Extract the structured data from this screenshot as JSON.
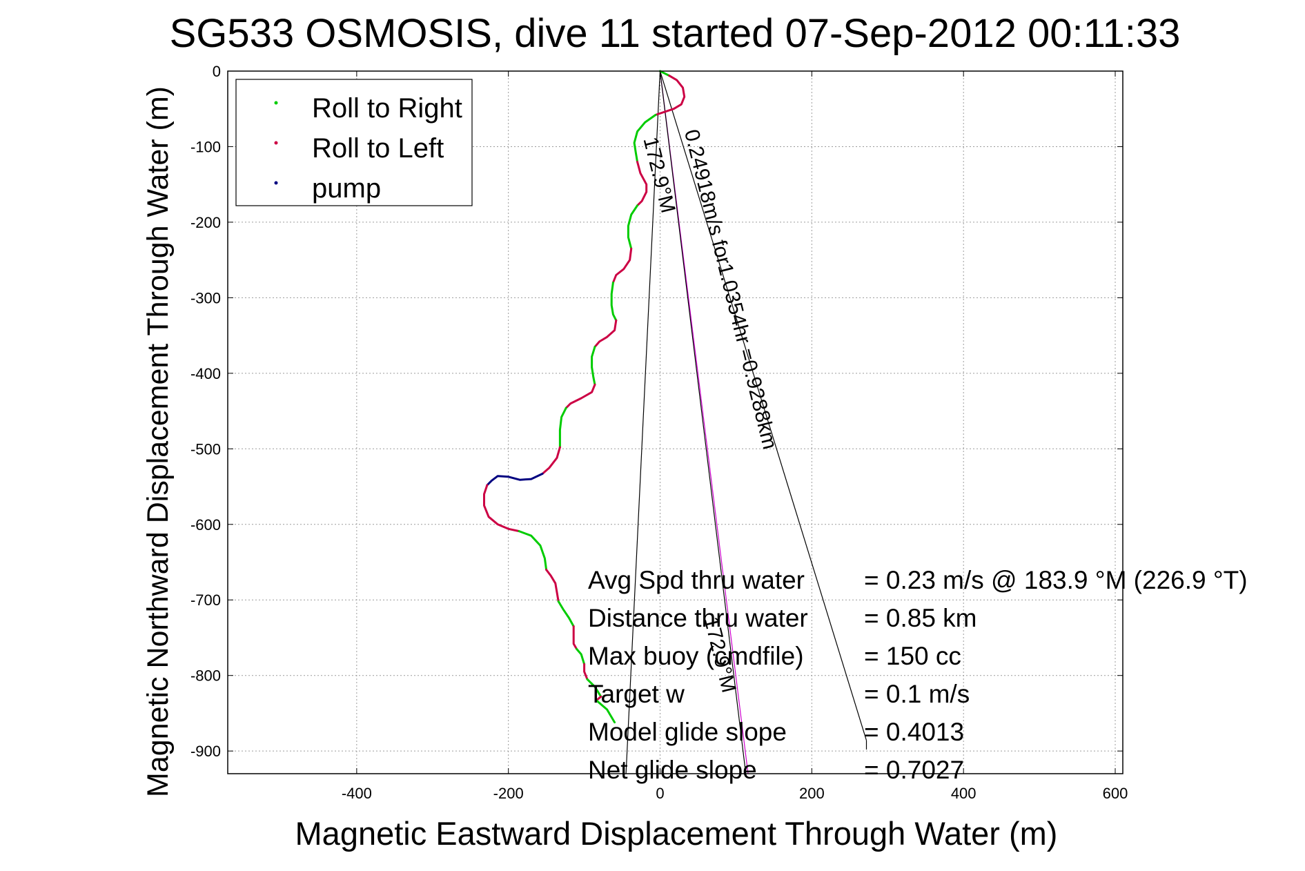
{
  "chart_data": {
    "type": "line",
    "title": "SG533 OSMOSIS, dive 11 started 07-Sep-2012 00:11:33",
    "xlabel": "Magnetic Eastward Displacement Through Water (m)",
    "ylabel": "Magnetic Northward Displacement Through Water (m)",
    "xlim": [
      -570,
      610
    ],
    "ylim": [
      -930,
      0
    ],
    "xticks": [
      -400,
      -200,
      0,
      200,
      400,
      600
    ],
    "yticks": [
      0,
      -100,
      -200,
      -300,
      -400,
      -500,
      -600,
      -700,
      -800,
      -900
    ],
    "grid": true,
    "legend_position": "top-left",
    "legend": [
      {
        "label": "Roll to Right",
        "color": "#00cc00"
      },
      {
        "label": "Roll to Left",
        "color": "#cc0044"
      },
      {
        "label": "pump",
        "color": "#000080"
      }
    ],
    "track_segments": [
      {
        "kind": "right",
        "points": [
          [
            0,
            0
          ],
          [
            6,
            -3
          ],
          [
            12,
            -6
          ]
        ]
      },
      {
        "kind": "left",
        "points": [
          [
            12,
            -6
          ],
          [
            22,
            -12
          ],
          [
            30,
            -22
          ],
          [
            32,
            -34
          ],
          [
            28,
            -44
          ],
          [
            18,
            -50
          ],
          [
            6,
            -54
          ],
          [
            -6,
            -58
          ]
        ]
      },
      {
        "kind": "right",
        "points": [
          [
            -6,
            -58
          ],
          [
            -20,
            -68
          ],
          [
            -30,
            -80
          ],
          [
            -34,
            -95
          ],
          [
            -32,
            -108
          ],
          [
            -30,
            -120
          ]
        ]
      },
      {
        "kind": "left",
        "points": [
          [
            -30,
            -120
          ],
          [
            -26,
            -135
          ],
          [
            -18,
            -150
          ],
          [
            -18,
            -160
          ],
          [
            -24,
            -172
          ],
          [
            -30,
            -178
          ]
        ]
      },
      {
        "kind": "right",
        "points": [
          [
            -30,
            -178
          ],
          [
            -38,
            -190
          ],
          [
            -42,
            -205
          ],
          [
            -42,
            -220
          ],
          [
            -38,
            -235
          ]
        ]
      },
      {
        "kind": "left",
        "points": [
          [
            -38,
            -235
          ],
          [
            -40,
            -250
          ],
          [
            -48,
            -262
          ],
          [
            -58,
            -270
          ],
          [
            -62,
            -280
          ]
        ]
      },
      {
        "kind": "right",
        "points": [
          [
            -62,
            -280
          ],
          [
            -64,
            -295
          ],
          [
            -64,
            -310
          ],
          [
            -62,
            -322
          ],
          [
            -58,
            -330
          ]
        ]
      },
      {
        "kind": "left",
        "points": [
          [
            -58,
            -330
          ],
          [
            -60,
            -343
          ],
          [
            -70,
            -352
          ],
          [
            -80,
            -358
          ],
          [
            -86,
            -365
          ]
        ]
      },
      {
        "kind": "right",
        "points": [
          [
            -86,
            -365
          ],
          [
            -90,
            -378
          ],
          [
            -90,
            -392
          ],
          [
            -88,
            -405
          ],
          [
            -86,
            -415
          ]
        ]
      },
      {
        "kind": "left",
        "points": [
          [
            -86,
            -415
          ],
          [
            -90,
            -425
          ],
          [
            -104,
            -433
          ],
          [
            -118,
            -440
          ],
          [
            -124,
            -446
          ]
        ]
      },
      {
        "kind": "right",
        "points": [
          [
            -124,
            -446
          ],
          [
            -130,
            -458
          ],
          [
            -132,
            -475
          ],
          [
            -132,
            -490
          ],
          [
            -132,
            -498
          ]
        ]
      },
      {
        "kind": "left",
        "points": [
          [
            -132,
            -498
          ],
          [
            -136,
            -512
          ],
          [
            -146,
            -525
          ],
          [
            -155,
            -533
          ]
        ]
      },
      {
        "kind": "pump",
        "points": [
          [
            -155,
            -533
          ],
          [
            -170,
            -540
          ],
          [
            -185,
            -541
          ],
          [
            -200,
            -537
          ],
          [
            -214,
            -536
          ],
          [
            -222,
            -542
          ],
          [
            -228,
            -548
          ]
        ]
      },
      {
        "kind": "left",
        "points": [
          [
            -228,
            -548
          ],
          [
            -232,
            -560
          ],
          [
            -232,
            -575
          ],
          [
            -226,
            -590
          ],
          [
            -214,
            -600
          ],
          [
            -200,
            -606
          ],
          [
            -186,
            -609
          ]
        ]
      },
      {
        "kind": "right",
        "points": [
          [
            -186,
            -609
          ],
          [
            -170,
            -615
          ],
          [
            -158,
            -628
          ],
          [
            -152,
            -645
          ],
          [
            -150,
            -660
          ]
        ]
      },
      {
        "kind": "left",
        "points": [
          [
            -150,
            -660
          ],
          [
            -144,
            -668
          ],
          [
            -138,
            -678
          ],
          [
            -136,
            -690
          ],
          [
            -134,
            -702
          ]
        ]
      },
      {
        "kind": "right",
        "points": [
          [
            -134,
            -702
          ],
          [
            -128,
            -712
          ],
          [
            -120,
            -724
          ],
          [
            -114,
            -735
          ]
        ]
      },
      {
        "kind": "left",
        "points": [
          [
            -114,
            -735
          ],
          [
            -114,
            -748
          ],
          [
            -114,
            -758
          ],
          [
            -110,
            -765
          ]
        ]
      },
      {
        "kind": "right",
        "points": [
          [
            -110,
            -765
          ],
          [
            -104,
            -772
          ],
          [
            -100,
            -785
          ]
        ]
      },
      {
        "kind": "left",
        "points": [
          [
            -100,
            -785
          ],
          [
            -100,
            -795
          ],
          [
            -96,
            -805
          ]
        ]
      },
      {
        "kind": "right",
        "points": [
          [
            -96,
            -805
          ],
          [
            -86,
            -815
          ],
          [
            -78,
            -828
          ]
        ]
      },
      {
        "kind": "left",
        "points": [
          [
            -78,
            -828
          ],
          [
            -84,
            -833
          ]
        ]
      },
      {
        "kind": "right",
        "points": [
          [
            -84,
            -833
          ],
          [
            -70,
            -845
          ],
          [
            -60,
            -862
          ]
        ]
      }
    ],
    "reference_lines": [
      {
        "color": "#000000",
        "points": [
          [
            0,
            0
          ],
          [
            -45,
            -930
          ]
        ]
      },
      {
        "color": "#000000",
        "points": [
          [
            0,
            0
          ],
          [
            272,
            -886
          ]
        ]
      },
      {
        "color": "#000000",
        "points": [
          [
            272,
            -886
          ],
          [
            272,
            -898
          ]
        ]
      },
      {
        "color": "#cc00cc",
        "points": [
          [
            0,
            0
          ],
          [
            116,
            -930
          ]
        ]
      },
      {
        "color": "#000000",
        "points": [
          [
            0,
            0
          ],
          [
            113,
            -930
          ]
        ]
      }
    ],
    "annotations": [
      {
        "text": "0.24918m/s for1.0354hr =0.9288km",
        "x": 32,
        "y": -80,
        "rotation": 76
      },
      {
        "text": "172.9°M",
        "x": -22,
        "y": -90,
        "rotation": 76
      },
      {
        "text": "172.9°M",
        "x": 58,
        "y": -725,
        "rotation": 76
      }
    ],
    "stats": [
      {
        "label": "Avg Spd thru water",
        "value": "=  0.23 m/s @ 183.9 °M (226.9 °T)"
      },
      {
        "label": "Distance thru water",
        "value": "=  0.85 km"
      },
      {
        "label": "Max buoy (cmdfile)",
        "value": "= 150 cc"
      },
      {
        "label": "Target w",
        "value": "= 0.1 m/s"
      },
      {
        "label": "Model glide slope",
        "value": "= 0.4013"
      },
      {
        "label": "Net glide slope",
        "value": "= 0.7027"
      }
    ]
  }
}
